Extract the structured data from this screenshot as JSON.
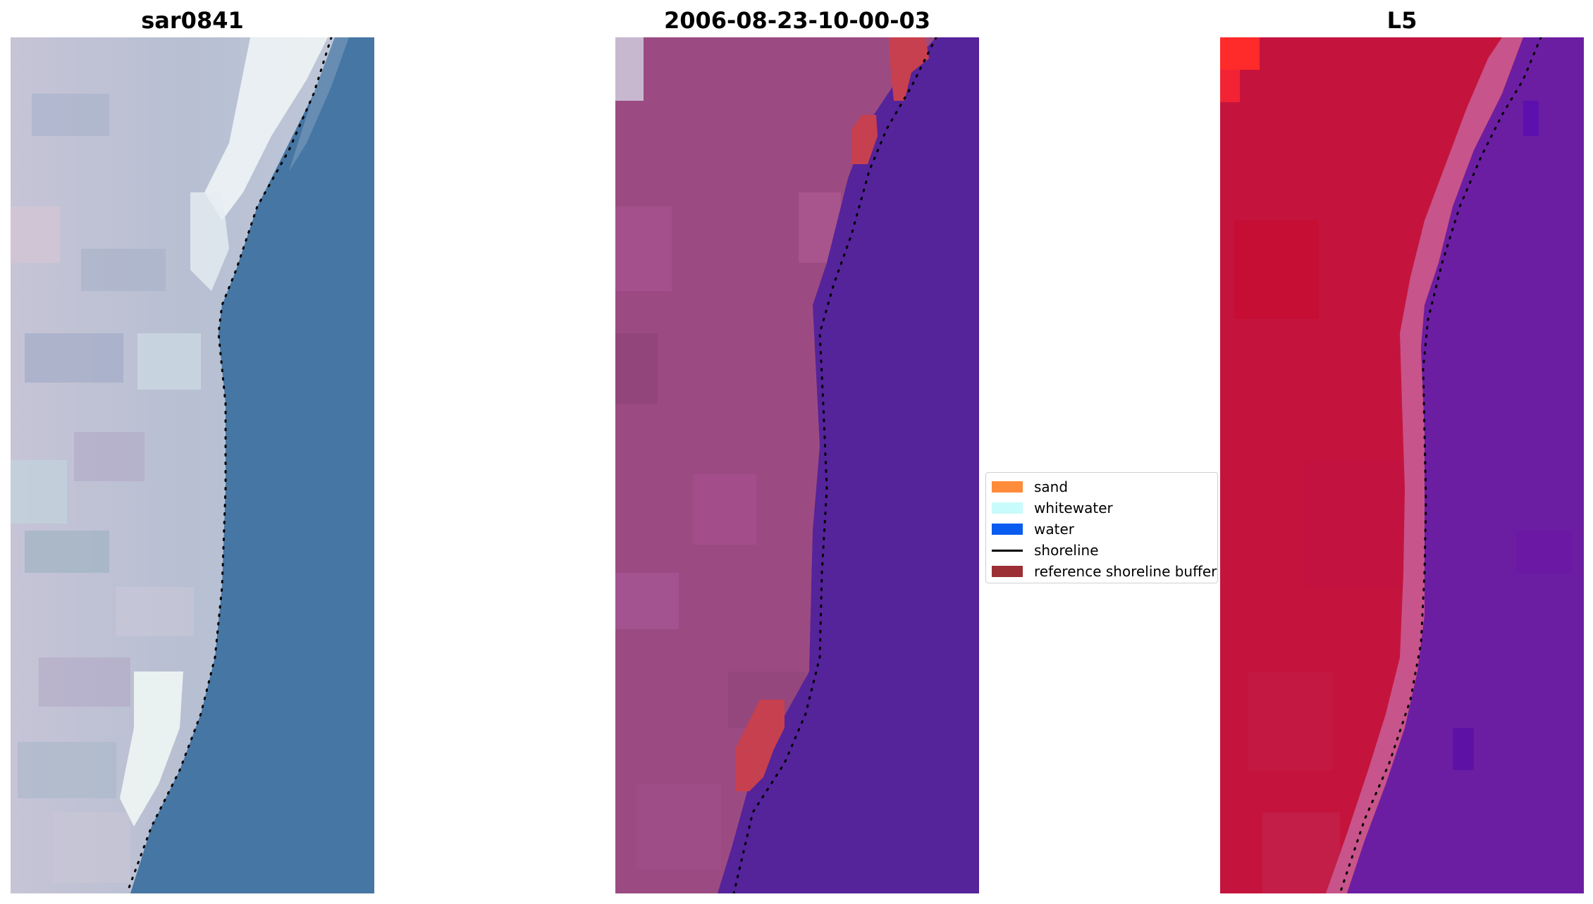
{
  "panels": [
    {
      "title": "sar0841"
    },
    {
      "title": "2006-08-23-10-00-03"
    },
    {
      "title": "L5"
    }
  ],
  "legend": {
    "items": [
      {
        "label": "sand",
        "color": "#ff8c3a",
        "kind": "patch"
      },
      {
        "label": "whitewater",
        "color": "#c8fbfb",
        "kind": "patch"
      },
      {
        "label": "water",
        "color": "#0a5cf0",
        "kind": "patch"
      },
      {
        "label": "shoreline",
        "color": "#000000",
        "kind": "line"
      },
      {
        "label": "reference shoreline buffer",
        "color": "#9b2f35",
        "kind": "patch"
      }
    ]
  },
  "colors": {
    "rgb_land": "#b9bfd3",
    "rgb_white": "#f0f6f6",
    "rgb_sea": "#4676a3",
    "class_land": "#9c4b82",
    "class_sea": "#55239a",
    "class_buffer": "#c7404f",
    "index_land": "#c4143d",
    "index_transition": "#c7548a",
    "index_sea": "#6c1ea2"
  }
}
